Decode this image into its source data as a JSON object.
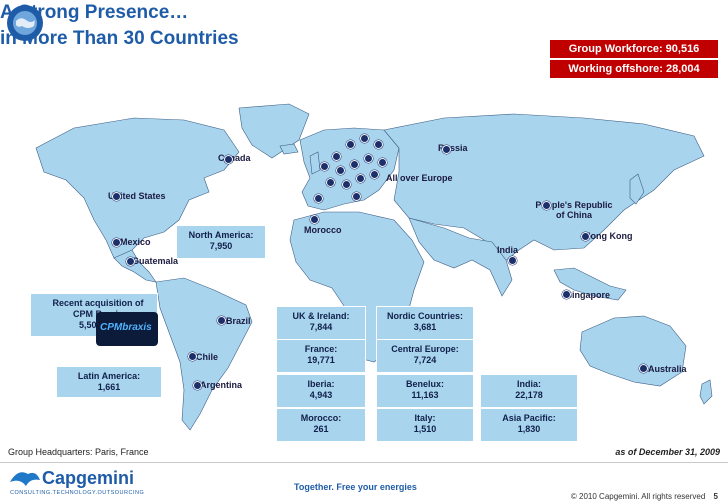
{
  "title": {
    "line1": "A Strong Presence…",
    "line2": "in More Than 30 Countries"
  },
  "badges": {
    "workforce": "Group Workforce: 90,516",
    "offshore": "Working offshore: 28,004"
  },
  "map_labels": {
    "russia": "Russia",
    "canada": "Canada",
    "all_over_europe": "All over Europe",
    "united_states": "United States",
    "prc": "People's Republic of China",
    "hong_kong": "Hong Kong",
    "morocco": "Morocco",
    "mexico": "Mexico",
    "india": "India",
    "guatemala": "Guatemala",
    "singapore": "Singapore",
    "brazil": "Brazil",
    "chile": "Chile",
    "argentina": "Argentina",
    "australia": "Australia"
  },
  "callouts": {
    "north_america_label": "North America:",
    "north_america_value": "7,950",
    "cpm_line1": "Recent acquisition of",
    "cpm_line2": "CPM Braxis",
    "cpm_value": "5,500",
    "cpm_logo_text": "CPMbraxis",
    "latin_america_label": "Latin America:",
    "latin_america_value": "1,661"
  },
  "stats": [
    {
      "label": "UK & Ireland:",
      "value": "7,844"
    },
    {
      "label": "Nordic Countries:",
      "value": "3,681"
    },
    {
      "label": "France:",
      "value": "19,771"
    },
    {
      "label": "Central Europe:",
      "value": "7,724"
    },
    {
      "label": "Iberia:",
      "value": "4,943"
    },
    {
      "label": "Benelux:",
      "value": "11,163"
    },
    {
      "label": "India:",
      "value": "22,178"
    },
    {
      "label": "Morocco:",
      "value": "261"
    },
    {
      "label": "Italy:",
      "value": "1,510"
    },
    {
      "label": "Asia Pacific:",
      "value": "1,830"
    }
  ],
  "footer": {
    "headquarters": "Group Headquarters: Paris, France",
    "date": "as of December 31, 2009",
    "tagline": "Together. Free your energies",
    "copyright": "© 2010 Capgemini. All rights reserved",
    "page": "5",
    "brand": "Capgemini",
    "brand_sub": "CONSULTING.TECHNOLOGY.OUTSOURCING"
  },
  "colors": {
    "accent": "#1f5ca8",
    "badge": "#c00000",
    "ocean": "#ffffff",
    "land": "#a9d4ee",
    "dot": "#1b2f6b"
  }
}
